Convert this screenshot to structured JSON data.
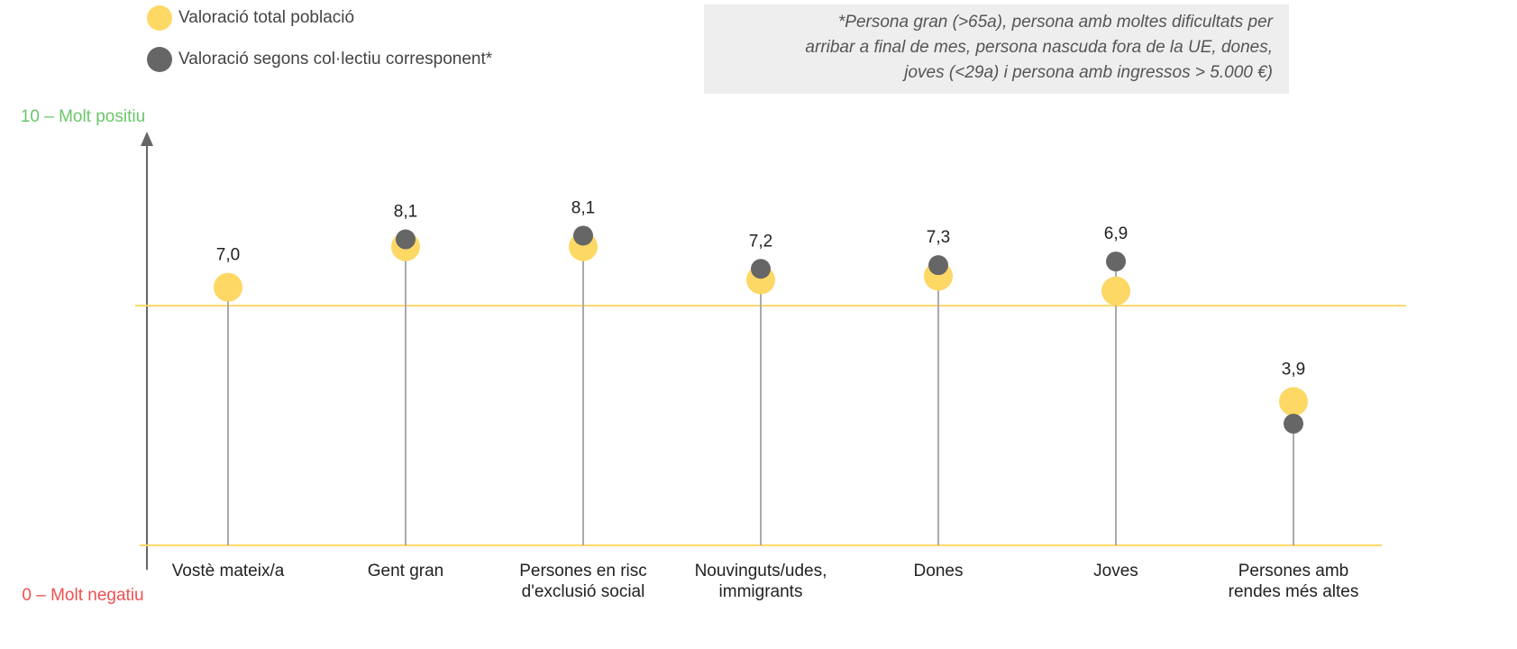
{
  "chart_data": {
    "type": "dot",
    "categories": [
      "Vostè mateix/a",
      "Gent gran",
      "Persones en risc d'exclusió social",
      "Nouvinguts/udes, immigrants",
      "Dones",
      "Joves",
      "Persones amb rendes més altes"
    ],
    "series": [
      {
        "name": "Valoració total població",
        "color": "#fdd865",
        "values": [
          7.0,
          8.1,
          8.1,
          7.2,
          7.3,
          6.9,
          3.9
        ],
        "value_labels": [
          "7,0",
          "8,1",
          "8,1",
          "7,2",
          "7,3",
          "6,9",
          "3,9"
        ]
      },
      {
        "name": "Valoració segons col·lectiu corresponent*",
        "color": "#666666",
        "values": [
          null,
          8.3,
          8.4,
          7.5,
          7.6,
          7.7,
          3.3
        ]
      }
    ],
    "ylim": [
      0,
      10
    ],
    "yticks": [
      {
        "value": 0,
        "label": "0 – Molt negatiu"
      },
      {
        "value": 10,
        "label": "10 – Molt positiu"
      }
    ],
    "reference_line": 6.5,
    "note": [
      "*Persona gran (>65a), persona amb moltes dificultats per",
      "arribar a final de mes, persona nascuda fora de la UE, dones,",
      "joves (<29a) i persona amb ingressos > 5.000 €)"
    ]
  }
}
